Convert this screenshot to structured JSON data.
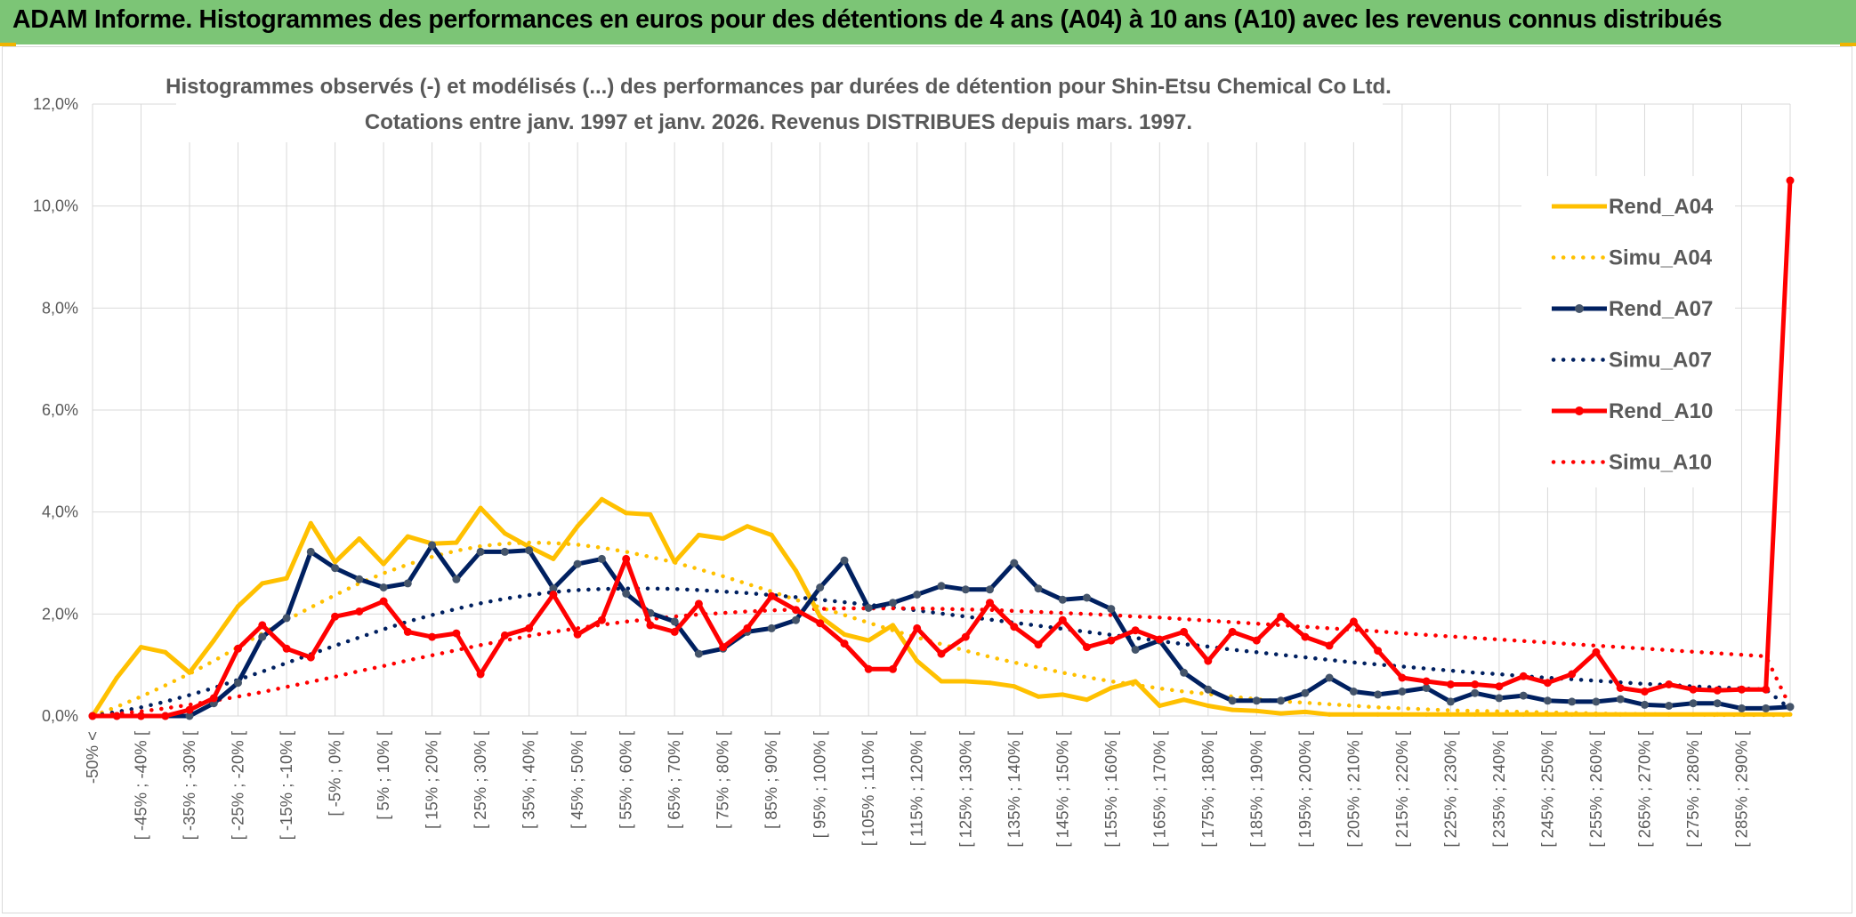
{
  "banner": {
    "title": "ADAM Informe. Histogrammes des performances en euros pour des détentions de 4 ans (A04) à 10 ans (A10) avec les revenus connus distribués"
  },
  "colors": {
    "banner_bg": "#7cc576",
    "A04": "#ffc000",
    "A07": "#002060",
    "A07_marker": "#44546a",
    "A10": "#ff0000",
    "grid": "#d9d9d9",
    "text": "#595959"
  },
  "chart_data": {
    "type": "line",
    "title": "Histogrammes observés (-) et modélisés (...) des performances par durées de détention pour Shin-Etsu Chemical Co Ltd.",
    "subtitle": "Cotations entre janv. 1997 et janv. 2026. Revenus DISTRIBUES depuis mars. 1997.",
    "xlabel": "",
    "ylabel": "",
    "ylim": [
      0,
      0.12
    ],
    "y_ticks": [
      "0,0%",
      "2,0%",
      "4,0%",
      "6,0%",
      "8,0%",
      "10,0%",
      "12,0%"
    ],
    "grid": true,
    "legend_position": "right",
    "categories": [
      "-50% <",
      "[ -50% ; -45% [",
      "[ -45% ; -40% [",
      "[ -40% ; -35% [",
      "[ -35% ; -30% [",
      "[ -30% ; -25% [",
      "[ -25% ; -20% [",
      "[ -20% ; -15% [",
      "[ -15% ; -10% [",
      "[ -10% ; -5% [",
      "[ -5% ; 0% [",
      "[ 0% ; 5% [",
      "[ 5% ; 10% [",
      "[ 10% ; 15% [",
      "[ 15% ; 20% [",
      "[ 20% ; 25% [",
      "[ 25% ; 30% [",
      "[ 30% ; 35% [",
      "[ 35% ; 40% [",
      "[ 40% ; 45% [",
      "[ 45% ; 50% [",
      "[ 50% ; 55% [",
      "[ 55% ; 60% [",
      "[ 60% ; 65% [",
      "[ 65% ; 70% [",
      "[ 70% ; 75% [",
      "[ 75% ; 80% [",
      "[ 80% ; 85% [",
      "[ 85% ; 90% [",
      "[ 90% ; 95% [",
      "[ 95% ; 100% [",
      "[ 100% ; 105% [",
      "[ 105% ; 110% [",
      "[ 110% ; 115% [",
      "[ 115% ; 120% [",
      "[ 120% ; 125% [",
      "[ 125% ; 130% [",
      "[ 130% ; 135% [",
      "[ 135% ; 140% [",
      "[ 140% ; 145% [",
      "[ 145% ; 150% [",
      "[ 150% ; 155% [",
      "[ 155% ; 160% [",
      "[ 160% ; 165% [",
      "[ 165% ; 170% [",
      "[ 170% ; 175% [",
      "[ 175% ; 180% [",
      "[ 180% ; 185% [",
      "[ 185% ; 190% [",
      "[ 190% ; 195% [",
      "[ 195% ; 200% [",
      "[ 200% ; 205% [",
      "[ 205% ; 210% [",
      "[ 210% ; 215% [",
      "[ 215% ; 220% [",
      "[ 220% ; 225% [",
      "[ 225% ; 230% [",
      "[ 230% ; 235% [",
      "[ 235% ; 240% [",
      "[ 240% ; 245% [",
      "[ 245% ; 250% [",
      "[ 250% ; 255% [",
      "[ 255% ; 260% [",
      "[ 260% ; 265% [",
      "[ 265% ; 270% [",
      "[ 270% ; 275% [",
      "[ 275% ; 280% [",
      "[ 280% ; 285% [",
      "[ 285% ; 290% [",
      "[ 290% ; 295% [",
      "295% <="
    ],
    "visible_x_labels": [
      "-50% <",
      "[ -45% ; -40% [",
      "[ -35% ; -30% [",
      "[ -25% ; -20% [",
      "[ -15% ; -10% [",
      "[ -5% ; 0% [",
      "[ 5% ; 10% [",
      "[ 15% ; 20% [",
      "[ 25% ; 30% [",
      "[ 35% ; 40% [",
      "[ 45% ; 50% [",
      "[ 55% ; 60% [",
      "[ 65% ; 70% [",
      "[ 75% ; 80% [",
      "[ 85% ; 90% [",
      "[ 95% ; 100% [",
      "[ 105% ; 110% [",
      "[ 115% ; 120% [",
      "[ 125% ; 130% [",
      "[ 135% ; 140% [",
      "[ 145% ; 150% [",
      "[ 155% ; 160% [",
      "[ 165% ; 170% [",
      "[ 175% ; 180% [",
      "[ 185% ; 190% [",
      "[ 195% ; 200% [",
      "[ 205% ; 210% [",
      "[ 215% ; 220% [",
      "[ 225% ; 230% [",
      "[ 235% ; 240% [",
      "[ 245% ; 250% [",
      "[ 255% ; 260% [",
      "[ 265% ; 270% [",
      "[ 275% ; 280% [",
      "[ 285% ; 290% ["
    ],
    "series": [
      {
        "name": "Rend_A04",
        "style": "solid",
        "color": "#ffc000",
        "marker": false,
        "values": [
          0.0,
          0.0075,
          0.0135,
          0.0125,
          0.0085,
          0.0148,
          0.0215,
          0.026,
          0.027,
          0.0378,
          0.0302,
          0.0348,
          0.0298,
          0.0352,
          0.0338,
          0.034,
          0.0408,
          0.0358,
          0.0332,
          0.0308,
          0.0372,
          0.0425,
          0.0398,
          0.0395,
          0.0302,
          0.0355,
          0.0348,
          0.0372,
          0.0355,
          0.0285,
          0.0195,
          0.016,
          0.0148,
          0.0178,
          0.0108,
          0.0068,
          0.0068,
          0.0065,
          0.0058,
          0.0038,
          0.0042,
          0.0032,
          0.0055,
          0.0068,
          0.002,
          0.0032,
          0.002,
          0.0012,
          0.001,
          0.0005,
          0.0008,
          0.0003,
          0.0003,
          0.0003,
          0.0003,
          0.0003,
          0.0003,
          0.0003,
          0.0003,
          0.0003,
          0.0003,
          0.0003,
          0.0003,
          0.0003,
          0.0003,
          0.0003,
          0.0003,
          0.0003,
          0.0003,
          0.0003,
          0.0003
        ]
      },
      {
        "name": "Simu_A04",
        "style": "dotted",
        "color": "#ffc000",
        "values": [
          0.0,
          0.0018,
          0.0038,
          0.006,
          0.0083,
          0.0108,
          0.0135,
          0.0162,
          0.0188,
          0.0213,
          0.0237,
          0.026,
          0.028,
          0.0297,
          0.0312,
          0.0324,
          0.0333,
          0.0338,
          0.034,
          0.0339,
          0.0336,
          0.033,
          0.0322,
          0.0312,
          0.0301,
          0.0288,
          0.0274,
          0.0259,
          0.0244,
          0.0228,
          0.0213,
          0.0198,
          0.0183,
          0.0168,
          0.0154,
          0.0141,
          0.0128,
          0.0116,
          0.0105,
          0.0095,
          0.0085,
          0.0076,
          0.0068,
          0.0061,
          0.0054,
          0.0048,
          0.0043,
          0.0038,
          0.0033,
          0.0029,
          0.0026,
          0.0023,
          0.002,
          0.0017,
          0.0015,
          0.0013,
          0.0011,
          0.001,
          0.0009,
          0.0008,
          0.0007,
          0.0006,
          0.0005,
          0.0004,
          0.0004,
          0.0003,
          0.0003,
          0.0002,
          0.0002,
          0.0002,
          0.0001
        ]
      },
      {
        "name": "Rend_A07",
        "style": "solid",
        "color": "#002060",
        "marker": true,
        "values": [
          0.0,
          0.0,
          0.0,
          0.0,
          0.0,
          0.0025,
          0.0065,
          0.0155,
          0.0192,
          0.0322,
          0.029,
          0.0268,
          0.0252,
          0.026,
          0.0335,
          0.0268,
          0.0322,
          0.0322,
          0.0325,
          0.025,
          0.0298,
          0.0308,
          0.024,
          0.0202,
          0.0185,
          0.0122,
          0.0132,
          0.0165,
          0.0172,
          0.0188,
          0.0252,
          0.0305,
          0.0212,
          0.0222,
          0.0238,
          0.0255,
          0.0248,
          0.0248,
          0.03,
          0.025,
          0.0228,
          0.0232,
          0.021,
          0.013,
          0.0148,
          0.0085,
          0.0052,
          0.003,
          0.003,
          0.003,
          0.0045,
          0.0075,
          0.0048,
          0.0042,
          0.0048,
          0.0055,
          0.0028,
          0.0045,
          0.0035,
          0.004,
          0.003,
          0.0028,
          0.0028,
          0.0033,
          0.0022,
          0.002,
          0.0025,
          0.0025,
          0.0015,
          0.0015,
          0.0018
        ]
      },
      {
        "name": "Simu_A07",
        "style": "dotted",
        "color": "#002060",
        "values": [
          0.0,
          0.0008,
          0.0017,
          0.0028,
          0.0041,
          0.0055,
          0.0071,
          0.0087,
          0.0104,
          0.0121,
          0.0138,
          0.0154,
          0.017,
          0.0185,
          0.0198,
          0.021,
          0.0221,
          0.023,
          0.0237,
          0.0243,
          0.0247,
          0.0249,
          0.025,
          0.025,
          0.0249,
          0.0247,
          0.0244,
          0.0241,
          0.0237,
          0.0233,
          0.0228,
          0.0223,
          0.0218,
          0.0213,
          0.0207,
          0.0201,
          0.0195,
          0.0189,
          0.0183,
          0.0177,
          0.0171,
          0.0165,
          0.0159,
          0.0153,
          0.0147,
          0.0141,
          0.0136,
          0.013,
          0.0125,
          0.012,
          0.0115,
          0.011,
          0.0105,
          0.0101,
          0.0097,
          0.0093,
          0.0089,
          0.0085,
          0.0082,
          0.0078,
          0.0075,
          0.0072,
          0.0069,
          0.0066,
          0.0063,
          0.0061,
          0.0058,
          0.0056,
          0.0054,
          0.0052,
          0.0014
        ]
      },
      {
        "name": "Rend_A10",
        "style": "solid",
        "color": "#ff0000",
        "marker": true,
        "values": [
          0.0,
          0.0,
          0.0,
          0.0,
          0.0012,
          0.0035,
          0.0132,
          0.0178,
          0.0132,
          0.0115,
          0.0195,
          0.0205,
          0.0225,
          0.0165,
          0.0155,
          0.0162,
          0.0082,
          0.0158,
          0.0172,
          0.0238,
          0.016,
          0.0188,
          0.0308,
          0.0178,
          0.0165,
          0.022,
          0.0135,
          0.0172,
          0.0235,
          0.0208,
          0.0182,
          0.0142,
          0.0092,
          0.0092,
          0.0172,
          0.0122,
          0.0155,
          0.0222,
          0.0175,
          0.014,
          0.0188,
          0.0135,
          0.0148,
          0.0168,
          0.015,
          0.0165,
          0.0108,
          0.0165,
          0.0148,
          0.0195,
          0.0155,
          0.0138,
          0.0185,
          0.0128,
          0.0075,
          0.0068,
          0.0062,
          0.0062,
          0.0058,
          0.0078,
          0.0065,
          0.0082,
          0.0125,
          0.0055,
          0.0048,
          0.0062,
          0.0052,
          0.005,
          0.0052,
          0.0052,
          0.105
        ]
      },
      {
        "name": "Simu_A10",
        "style": "dotted",
        "color": "#ff0000",
        "values": [
          0.0,
          0.0004,
          0.0009,
          0.0015,
          0.0022,
          0.003,
          0.0038,
          0.0047,
          0.0057,
          0.0067,
          0.0077,
          0.0088,
          0.0098,
          0.0109,
          0.0119,
          0.0129,
          0.0139,
          0.0148,
          0.0157,
          0.0165,
          0.0172,
          0.0179,
          0.0185,
          0.019,
          0.0195,
          0.0199,
          0.0202,
          0.0205,
          0.0207,
          0.0209,
          0.021,
          0.0211,
          0.0211,
          0.0211,
          0.0211,
          0.021,
          0.0209,
          0.0208,
          0.0206,
          0.0204,
          0.0202,
          0.02,
          0.0198,
          0.0195,
          0.0193,
          0.019,
          0.0187,
          0.0184,
          0.0181,
          0.0178,
          0.0175,
          0.0172,
          0.0169,
          0.0166,
          0.0162,
          0.0159,
          0.0156,
          0.0153,
          0.015,
          0.0147,
          0.0144,
          0.0141,
          0.0138,
          0.0135,
          0.0132,
          0.0129,
          0.0126,
          0.0123,
          0.012,
          0.0117,
          0.0018
        ]
      }
    ]
  }
}
